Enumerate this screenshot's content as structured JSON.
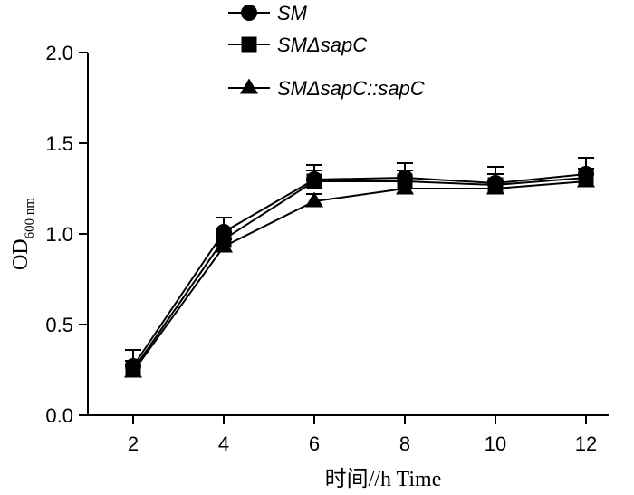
{
  "chart_data": {
    "type": "line",
    "xlabel": "时间//h  Time",
    "ylabel_main": "OD",
    "ylabel_sub": "600 nm",
    "x": [
      2,
      4,
      6,
      8,
      10,
      12
    ],
    "xlim": [
      1,
      12.5
    ],
    "ylim": [
      0,
      2
    ],
    "xticks": [
      "2",
      "4",
      "6",
      "8",
      "10",
      "12"
    ],
    "yticks": [
      "0.0",
      "0.5",
      "1.0",
      "1.5",
      "2.0"
    ],
    "grid": false,
    "legend_position": "top",
    "color": "#000000",
    "series": [
      {
        "name": "SM",
        "marker": "circle",
        "values": [
          0.27,
          1.01,
          1.3,
          1.31,
          1.28,
          1.33
        ],
        "errors": [
          0.09,
          0.08,
          0.08,
          0.08,
          0.09,
          0.09
        ]
      },
      {
        "name": "SMΔsapC",
        "marker": "square",
        "values": [
          0.25,
          0.97,
          1.29,
          1.29,
          1.27,
          1.31
        ],
        "errors": [
          0.05,
          0.06,
          0.06,
          0.06,
          0.06,
          0.05
        ]
      },
      {
        "name": "SMΔsapC::sapC",
        "marker": "triangle",
        "values": [
          0.24,
          0.93,
          1.18,
          1.25,
          1.25,
          1.29
        ],
        "errors": [
          0.04,
          0.04,
          0.04,
          0.04,
          0.04,
          0.04
        ]
      }
    ]
  }
}
